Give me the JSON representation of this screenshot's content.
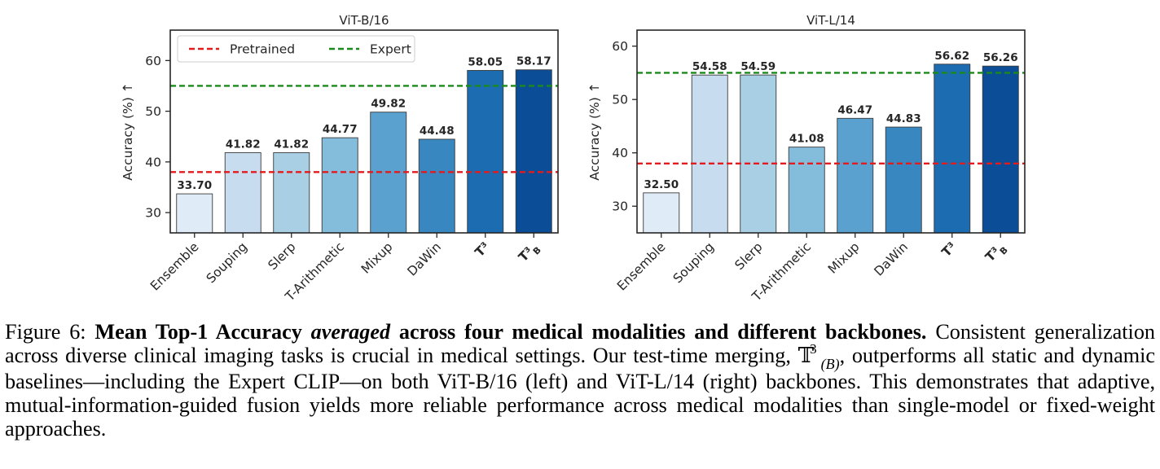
{
  "chart_data": [
    {
      "type": "bar",
      "title": "ViT-B/16",
      "ylabel": "Accuracy (%) ↑",
      "categories": [
        "Ensemble",
        "Souping",
        "Slerp",
        "T-Arithmetic",
        "Mixup",
        "DaWin",
        "T³",
        "T³_B"
      ],
      "values": [
        33.7,
        41.82,
        41.82,
        44.77,
        49.82,
        44.48,
        58.05,
        58.17
      ],
      "value_labels": [
        "33.70",
        "41.82",
        "41.82",
        "44.77",
        "49.82",
        "44.48",
        "58.05",
        "58.17"
      ],
      "ylim": [
        26,
        66
      ],
      "yticks": [
        30,
        40,
        50,
        60
      ],
      "reference_lines": [
        {
          "name": "Pretrained",
          "value": 38.0,
          "color": "#e41a1c"
        },
        {
          "name": "Expert",
          "value": 55.0,
          "color": "#1a8a1a"
        }
      ],
      "legend": {
        "placement": "top-left",
        "items": [
          "Pretrained",
          "Expert"
        ]
      },
      "colors": [
        "#dfebf7",
        "#c8dcf0",
        "#a9cfe5",
        "#84bcdb",
        "#5aa1cf",
        "#3987c0",
        "#1c6cb1",
        "#0b4e97"
      ]
    },
    {
      "type": "bar",
      "title": "ViT-L/14",
      "ylabel": "Accuracy (%) ↑",
      "categories": [
        "Ensemble",
        "Souping",
        "Slerp",
        "T-Arithmetic",
        "Mixup",
        "DaWin",
        "T³",
        "T³_B"
      ],
      "values": [
        32.5,
        54.58,
        54.59,
        41.08,
        46.47,
        44.83,
        56.62,
        56.26
      ],
      "value_labels": [
        "32.50",
        "54.58",
        "54.59",
        "41.08",
        "46.47",
        "44.83",
        "56.62",
        "56.26"
      ],
      "ylim": [
        25,
        63
      ],
      "yticks": [
        30,
        40,
        50,
        60
      ],
      "reference_lines": [
        {
          "name": "Pretrained",
          "value": 38.0,
          "color": "#e41a1c"
        },
        {
          "name": "Expert",
          "value": 55.0,
          "color": "#1a8a1a"
        }
      ],
      "colors": [
        "#dfebf7",
        "#c8dcf0",
        "#a9cfe5",
        "#84bcdb",
        "#5aa1cf",
        "#3987c0",
        "#1c6cb1",
        "#0b4e97"
      ]
    }
  ],
  "caption": {
    "label": "Figure 6:",
    "bold_a": "Mean Top-1 Accuracy",
    "emph": "averaged",
    "bold_b": "across four medical modalities and different backbones.",
    "s1": "Consistent generalization across diverse clinical imaging tasks is crucial in medical settings. Our test-time merging,",
    "sym": "𝕋",
    "sup": "3",
    "sub": "(B)",
    "s2": ", outperforms all static and dynamic baselines—including the Expert CLIP—on both ViT-B/16 (left) and ViT-L/14 (right) backbones. This demonstrates that adaptive, mutual-information-guided fusion yields more reliable performance across medical modalities than single-model or fixed-weight approaches."
  }
}
